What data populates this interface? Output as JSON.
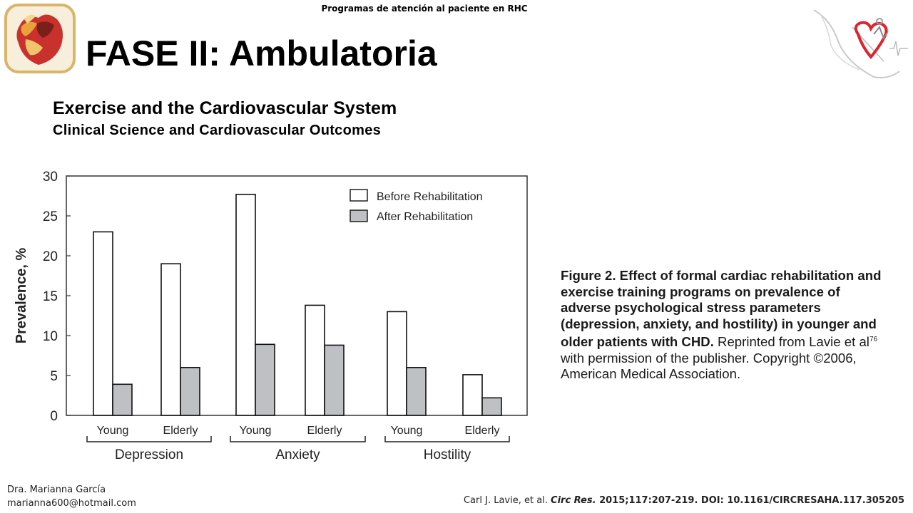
{
  "header": {
    "top_note": "Programas de atención al paciente en RHC",
    "title": "FASE II: Ambulatoria"
  },
  "book": {
    "title": "Exercise and the Cardiovascular System",
    "subtitle": "Clinical Science and Cardiovascular Outcomes"
  },
  "caption": {
    "bold": "Figure 2. Effect of formal cardiac rehabilitation and exercise training programs on prevalence of adverse psychological stress parameters (depression, anxiety, and hostility) in younger and older patients with CHD.",
    "normal_pre": " Reprinted from Lavie et al",
    "ref_sup": "76",
    "normal_post": " with permission of the publisher. Copyright ©2006, American Medical Association."
  },
  "footer": {
    "author_name": "Dra. Marianna García",
    "author_email": "marianna600@hotmail.com",
    "citation_pre": "Carl J. Lavie, et al. ",
    "citation_journal": "Circ Res.",
    "citation_post": " 2015;117:207-219.  DOI: 10.1161/CIRCRESAHA.117.305205"
  },
  "icons": {
    "left_logo": "heart-logo-icon",
    "right_logo": "mexico-heart-logo-icon"
  },
  "chart_data": {
    "type": "bar",
    "ylabel": "Prevalence, %",
    "xlabel": "",
    "ylim": [
      0,
      30
    ],
    "yticks": [
      "0",
      "5",
      "10",
      "15",
      "20",
      "25",
      "30"
    ],
    "grid": false,
    "legend_position": "top-right",
    "groups": [
      "Depression",
      "Anxiety",
      "Hostility"
    ],
    "categories": [
      "Young",
      "Elderly",
      "Young",
      "Elderly",
      "Young",
      "Elderly"
    ],
    "series": [
      {
        "name": "Before Rehabilitation",
        "color": "#ffffff",
        "values": [
          23,
          19,
          27.7,
          13.8,
          13,
          5.1
        ]
      },
      {
        "name": "After Rehabilitation",
        "color": "#bfc0c3",
        "values": [
          3.9,
          6,
          8.9,
          8.8,
          6,
          2.2
        ]
      }
    ]
  }
}
